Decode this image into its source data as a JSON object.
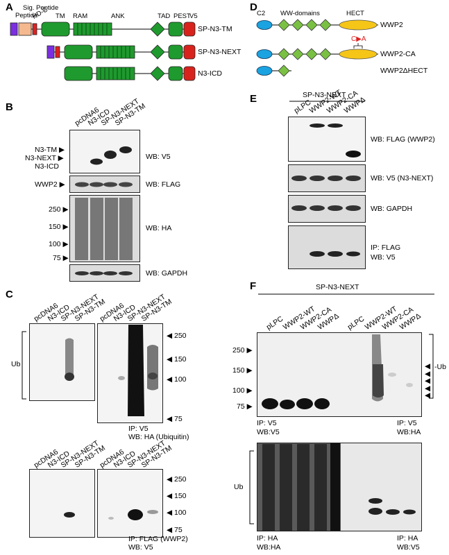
{
  "panels": {
    "A": "A",
    "B": "B",
    "C": "C",
    "D": "D",
    "E": "E",
    "F": "F"
  },
  "A": {
    "domains": [
      "Sig. Peptide",
      "HD-C",
      "TM",
      "RAM",
      "ANK",
      "TAD",
      "PEST",
      "V5"
    ],
    "constructs": [
      "SP-N3-TM",
      "SP-N3-NEXT",
      "N3-ICD"
    ]
  },
  "B": {
    "lanes": [
      "pcDNA6",
      "N3-ICD",
      "SP-N3-NEXT",
      "SP-N3-TM"
    ],
    "band_labels": [
      "N3-TM",
      "N3-NEXT",
      "N3-ICD",
      "WWP2"
    ],
    "markers": [
      "250",
      "150",
      "100",
      "75"
    ],
    "wb": [
      "WB: V5",
      "WB: FLAG",
      "WB: HA",
      "WB: GAPDH"
    ]
  },
  "C": {
    "lanes": [
      "pcDNA6",
      "N3-ICD",
      "SP-N3-NEXT",
      "SP-N3-TM"
    ],
    "ub": "Ub",
    "markers": [
      "250",
      "150",
      "100",
      "75"
    ],
    "top_caption": [
      "IP: V5",
      "WB: HA (Ubiquitin)"
    ],
    "bottom_caption": [
      "IP: FLAG (WWP2)",
      "WB: V5"
    ]
  },
  "D": {
    "domains": [
      "C2",
      "WW-domains",
      "HECT"
    ],
    "mutation": "C▶A",
    "constructs": [
      "WWP2",
      "WWP2-CA",
      "WWP2ΔHECT"
    ]
  },
  "E": {
    "header": "SP-N3-NEXT",
    "lanes": [
      "pLPC",
      "WWP2-WT",
      "WWP2-CA",
      "WWPΔ"
    ],
    "wb": [
      "WB: FLAG (WWP2)",
      "WB: V5 (N3-NEXT)",
      "WB: GAPDH"
    ],
    "ip": [
      "IP: FLAG",
      "WB: V5"
    ]
  },
  "F": {
    "header": "SP-N3-NEXT",
    "lanes": [
      "pLPC",
      "WWP2-WT",
      "WWP2-CA",
      "WWPΔ",
      "pLPC",
      "WWP2-WT",
      "WWP2-CA",
      "WWPΔ"
    ],
    "markers": [
      "250",
      "150",
      "100",
      "75"
    ],
    "ub": "Ub",
    "captions": {
      "tl": [
        "IP: V5",
        "WB:V5"
      ],
      "tr": [
        "IP: V5",
        "WB:HA"
      ],
      "bl": [
        "IP: HA",
        "WB:HA"
      ],
      "br": [
        "IP: HA",
        "WB:V5"
      ]
    }
  }
}
